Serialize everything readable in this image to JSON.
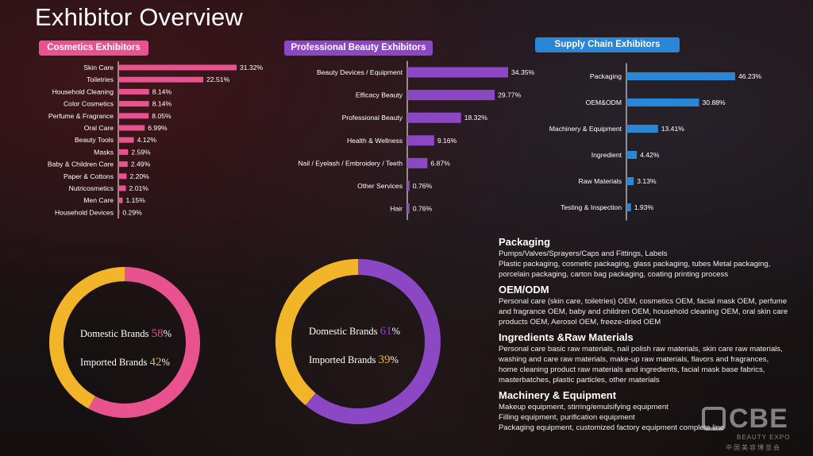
{
  "title": "Exhibitor Overview",
  "colors": {
    "pink": "#e8528e",
    "purple": "#8b47c4",
    "blue": "#2a86d6",
    "yellow": "#f2b52a",
    "white": "#ffffff"
  },
  "chart_data": [
    {
      "type": "bar",
      "orientation": "horizontal",
      "title": "Cosmetics Exhibitors",
      "unit": "%",
      "categories": [
        "Skin Care",
        "Toiletries",
        "Household Cleaning",
        "Color Cosmetics",
        "Perfume & Fragrance",
        "Oral Care",
        "Beauty Tools",
        "Masks",
        "Baby & Children Care",
        "Paper & Cottons",
        "Nutricosmetics",
        "Men Care",
        "Household Devices"
      ],
      "values": [
        31.32,
        22.51,
        8.14,
        8.14,
        8.05,
        6.99,
        4.12,
        2.59,
        2.49,
        2.2,
        2.01,
        1.15,
        0.29
      ],
      "labels": [
        "31.32%",
        "22.51%",
        "8.14%",
        "8.14%",
        "8.05%",
        "6.99%",
        "4.12%",
        "2.59%",
        "2.49%",
        "2.20%",
        "2.01%",
        "1.15%",
        "0.29%"
      ]
    },
    {
      "type": "bar",
      "orientation": "horizontal",
      "title": "Professional Beauty Exhibitors",
      "unit": "%",
      "categories": [
        "Beauty Devices / Equipment",
        "Efficacy Beauty",
        "Professional Beauty",
        "Health & Wellness",
        "Nail / Eyelash / Embroidery / Teeth",
        "Other Services",
        "Hair"
      ],
      "values": [
        34.35,
        29.77,
        18.32,
        9.16,
        6.87,
        0.76,
        0.76
      ],
      "labels": [
        "34.35%",
        "29.77%",
        "18.32%",
        "9.16%",
        "6.87%",
        "0.76%",
        "0.76%"
      ]
    },
    {
      "type": "bar",
      "orientation": "horizontal",
      "title": "Supply Chain Exhibitors",
      "unit": "%",
      "categories": [
        "Packaging",
        "OEM&ODM",
        "Machinery & Equipment",
        "Ingredient",
        "Raw Materials",
        "Testing & Inspection"
      ],
      "values": [
        46.23,
        30.88,
        13.41,
        4.42,
        3.13,
        1.93
      ],
      "labels": [
        "46.23%",
        "30.88%",
        "13.41%",
        "4.42%",
        "3.13%",
        "1.93%"
      ]
    },
    {
      "type": "pie",
      "variant": "donut",
      "categories": [
        "Domestic Brands",
        "Imported Brands"
      ],
      "values": [
        58,
        42
      ],
      "value_labels": [
        "58",
        "42"
      ],
      "unit": "%",
      "colors": [
        "#e8528e",
        "#f2b52a"
      ]
    },
    {
      "type": "pie",
      "variant": "donut",
      "categories": [
        "Domestic Brands",
        "Imported Brands"
      ],
      "values": [
        61,
        39
      ],
      "value_labels": [
        "61",
        "39"
      ],
      "unit": "%",
      "colors": [
        "#8b47c4",
        "#f2b52a"
      ]
    }
  ],
  "info": [
    {
      "heading": "Packaging",
      "lines": [
        "Pumps/Valves/Sprayers/Caps and Fittings, Labels",
        "Plastic packaging, cosmetic packaging, glass packaging, tubes Metal packaging,",
        "porcelain packaging, carton bag packaging, coating printing process"
      ]
    },
    {
      "heading": "OEM/ODM",
      "lines": [
        "Personal care (skin care, toiletries) OEM, cosmetics OEM, facial mask OEM, perfume",
        "and fragrance OEM, baby and children OEM, household cleaning OEM, oral skin care",
        "products OEM, Aerosol OEM, freeze-dried OEM"
      ]
    },
    {
      "heading": "Ingredients &Raw Materials",
      "lines": [
        "Personal care basic raw materials, nail polish raw materials, skin care raw materials,",
        "washing and care raw materials, make-up raw materials, flavors and fragrances,",
        "home cleaning product raw materials and ingredients, facial mask base fabrics,",
        "masterbatches, plastic particles, other materials"
      ]
    },
    {
      "heading": "Machinery & Equipment",
      "lines": [
        "Makeup equipment, stirring/emulsifying equipment",
        "Filling equipment, purification equipment",
        "Packaging equipment, customized factory equipment complete line"
      ]
    }
  ],
  "logo": {
    "text": "CBE",
    "sub": "BEAUTY EXPO",
    "cn": "中国美容博览会"
  }
}
